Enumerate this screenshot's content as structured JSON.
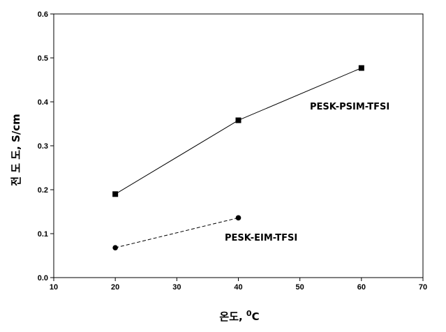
{
  "chart_data": {
    "type": "line",
    "xlabel": "온도, ",
    "xlabel_unit": "C",
    "xlabel_sup": "0",
    "ylabel": "전 도 도, S/cm",
    "xlim": [
      10,
      70
    ],
    "ylim": [
      0.0,
      0.6
    ],
    "xticks": [
      "10",
      "20",
      "30",
      "40",
      "50",
      "60",
      "70"
    ],
    "yticks": [
      "0.0",
      "0.1",
      "0.2",
      "0.3",
      "0.4",
      "0.5",
      "0.6"
    ],
    "grid": false,
    "series": [
      {
        "name": "PESK-PSIM-TFSI",
        "marker": "square",
        "line": "solid",
        "x": [
          20,
          40,
          60
        ],
        "y": [
          0.19,
          0.358,
          0.477
        ]
      },
      {
        "name": "PESK-EIM-TFSI",
        "marker": "circle",
        "line": "dashed",
        "x": [
          20,
          40
        ],
        "y": [
          0.068,
          0.136
        ]
      }
    ]
  }
}
